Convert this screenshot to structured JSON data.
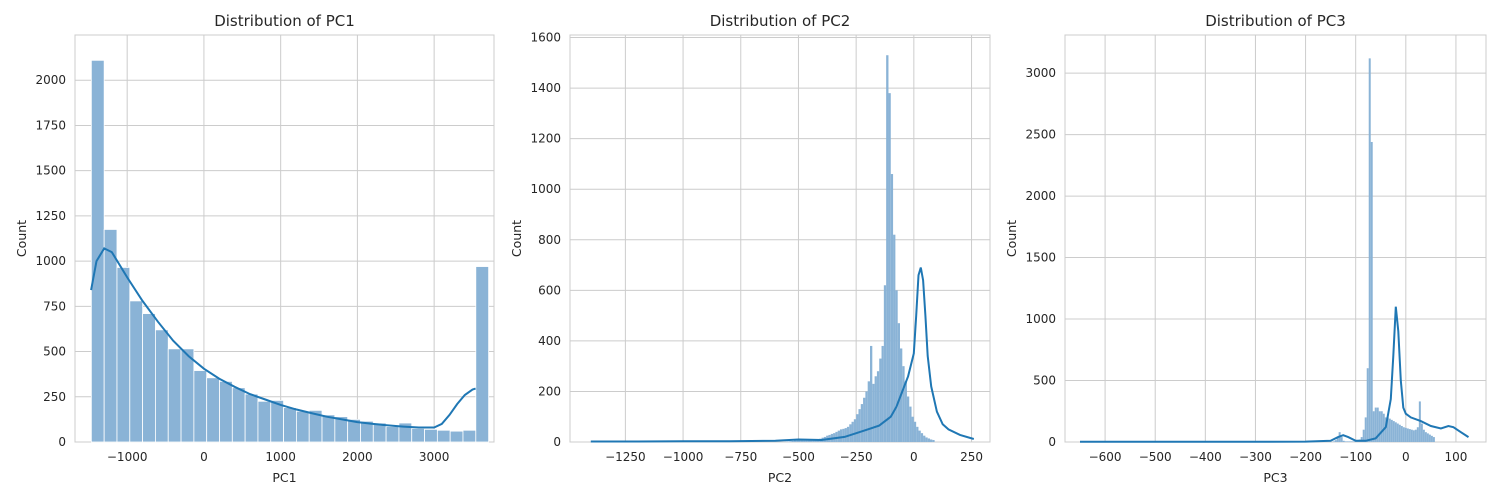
{
  "chart_data": [
    {
      "type": "histogram",
      "title": "Distribution of PC1",
      "xlabel": "PC1",
      "ylabel": "Count",
      "xlim": [
        -1680,
        3780
      ],
      "ylim": [
        0,
        2250
      ],
      "xticks": [
        -1000,
        0,
        1000,
        2000,
        3000
      ],
      "xtick_labels": [
        "−1000",
        "0",
        "1000",
        "2000",
        "3000"
      ],
      "yticks": [
        0,
        250,
        500,
        750,
        1000,
        1250,
        1500,
        1750,
        2000
      ],
      "grid": true,
      "bins": {
        "start": -1467,
        "width": 167,
        "counts": [
          2110,
          1175,
          965,
          780,
          710,
          620,
          515,
          515,
          395,
          355,
          335,
          300,
          265,
          225,
          230,
          190,
          170,
          175,
          150,
          140,
          125,
          115,
          105,
          85,
          105,
          75,
          70,
          65,
          60,
          65,
          970
        ]
      },
      "kde": {
        "x": [
          -1470,
          -1400,
          -1300,
          -1200,
          -1000,
          -800,
          -600,
          -400,
          -200,
          0,
          200,
          400,
          600,
          800,
          1000,
          1200,
          1400,
          1600,
          1800,
          2000,
          2200,
          2400,
          2600,
          2800,
          3000,
          3100,
          3200,
          3300,
          3400,
          3500,
          3540
        ],
        "y": [
          840,
          1000,
          1070,
          1050,
          910,
          780,
          665,
          560,
          475,
          405,
          350,
          305,
          265,
          235,
          205,
          180,
          160,
          140,
          125,
          110,
          100,
          92,
          85,
          80,
          80,
          100,
          150,
          210,
          260,
          290,
          295
        ]
      }
    },
    {
      "type": "histogram",
      "title": "Distribution of PC2",
      "xlabel": "PC2",
      "ylabel": "Count",
      "xlim": [
        -1490,
        330
      ],
      "ylim": [
        0,
        1610
      ],
      "xticks": [
        -1250,
        -1000,
        -750,
        -500,
        -250,
        0,
        250
      ],
      "xtick_labels": [
        "−1250",
        "−1000",
        "−750",
        "−500",
        "−250",
        "0",
        "250"
      ],
      "yticks": [
        0,
        200,
        400,
        600,
        800,
        1000,
        1200,
        1400,
        1600
      ],
      "grid": true,
      "bins": {
        "start": -1400,
        "width": 10,
        "counts": [
          1,
          0,
          0,
          0,
          0,
          0,
          0,
          0,
          0,
          0,
          0,
          0,
          0,
          0,
          0,
          0,
          0,
          0,
          0,
          0,
          0,
          0,
          0,
          0,
          0,
          0,
          0,
          0,
          0,
          0,
          0,
          0,
          0,
          0,
          0,
          0,
          0,
          0,
          0,
          0,
          0,
          0,
          0,
          0,
          0,
          0,
          0,
          0,
          0,
          0,
          0,
          0,
          0,
          0,
          0,
          0,
          0,
          0,
          0,
          0,
          0,
          0,
          0,
          0,
          0,
          0,
          0,
          0,
          0,
          0,
          0,
          0,
          0,
          0,
          0,
          0,
          0,
          0,
          0,
          0,
          0,
          0,
          0,
          0,
          1,
          2,
          3,
          4,
          6,
          7,
          8,
          9,
          10,
          9,
          8,
          7,
          6,
          7,
          10,
          13,
          17,
          20,
          25,
          28,
          32,
          35,
          40,
          45,
          50,
          52,
          55,
          60,
          70,
          80,
          90,
          110,
          130,
          150,
          175,
          200,
          240,
          380,
          230,
          260,
          280,
          330,
          380,
          620,
          1530,
          1380,
          1060,
          820,
          600,
          470,
          370,
          300,
          240,
          180,
          140,
          100,
          80,
          60,
          45,
          35,
          25,
          18,
          14,
          10,
          8
        ]
      },
      "kde": {
        "x": [
          -1400,
          -1200,
          -1000,
          -800,
          -600,
          -500,
          -400,
          -300,
          -250,
          -200,
          -150,
          -100,
          -75,
          -50,
          -25,
          0,
          10,
          20,
          30,
          40,
          50,
          60,
          75,
          100,
          125,
          150,
          200,
          260
        ],
        "y": [
          2,
          2,
          3,
          3,
          5,
          10,
          8,
          20,
          35,
          50,
          65,
          100,
          140,
          200,
          260,
          350,
          500,
          660,
          690,
          640,
          500,
          340,
          220,
          120,
          70,
          50,
          28,
          12
        ]
      }
    },
    {
      "type": "histogram",
      "title": "Distribution of PC3",
      "xlabel": "PC3",
      "ylabel": "Count",
      "xlim": [
        -680,
        160
      ],
      "ylim": [
        0,
        3310
      ],
      "xticks": [
        -600,
        -500,
        -400,
        -300,
        -200,
        -100,
        0,
        100
      ],
      "xtick_labels": [
        "−600",
        "−500",
        "−400",
        "−300",
        "−200",
        "−100",
        "0",
        "100"
      ],
      "yticks": [
        0,
        500,
        1000,
        1500,
        2000,
        2500,
        3000
      ],
      "grid": true,
      "bins": {
        "start": -650,
        "width": 4,
        "counts": [
          2,
          0,
          0,
          0,
          0,
          0,
          0,
          0,
          0,
          0,
          0,
          0,
          0,
          0,
          0,
          0,
          0,
          0,
          0,
          0,
          0,
          0,
          0,
          0,
          0,
          0,
          0,
          0,
          0,
          0,
          0,
          0,
          0,
          0,
          0,
          0,
          0,
          0,
          0,
          0,
          0,
          0,
          0,
          0,
          0,
          0,
          0,
          0,
          0,
          0,
          0,
          0,
          0,
          0,
          0,
          0,
          0,
          0,
          0,
          0,
          0,
          0,
          0,
          0,
          0,
          0,
          0,
          0,
          0,
          0,
          0,
          0,
          0,
          0,
          0,
          0,
          0,
          0,
          0,
          0,
          0,
          0,
          0,
          0,
          0,
          0,
          0,
          0,
          0,
          0,
          0,
          0,
          0,
          0,
          0,
          0,
          0,
          0,
          0,
          0,
          0,
          0,
          0,
          0,
          0,
          0,
          0,
          0,
          0,
          0,
          0,
          0,
          0,
          0,
          0,
          0,
          0,
          0,
          0,
          0,
          0,
          0,
          0,
          0,
          0,
          0,
          5,
          15,
          35,
          80,
          40,
          10,
          5,
          5,
          5,
          5,
          5,
          5,
          10,
          20,
          40,
          100,
          200,
          600,
          3120,
          2440,
          250,
          280,
          280,
          250,
          250,
          230,
          200,
          200,
          190,
          180,
          170,
          160,
          150,
          140,
          130,
          120,
          115,
          110,
          105,
          100,
          95,
          100,
          120,
          330,
          150,
          100,
          80,
          70,
          60,
          50,
          40
        ]
      },
      "kde": {
        "x": [
          -650,
          -500,
          -300,
          -200,
          -150,
          -135,
          -125,
          -115,
          -100,
          -80,
          -60,
          -40,
          -30,
          -25,
          -20,
          -15,
          -10,
          -5,
          0,
          10,
          30,
          50,
          70,
          85,
          95,
          110,
          125
        ],
        "y": [
          2,
          2,
          2,
          3,
          10,
          40,
          55,
          40,
          10,
          10,
          30,
          120,
          350,
          700,
          1100,
          900,
          500,
          280,
          230,
          200,
          170,
          130,
          110,
          130,
          120,
          80,
          40
        ]
      }
    }
  ]
}
